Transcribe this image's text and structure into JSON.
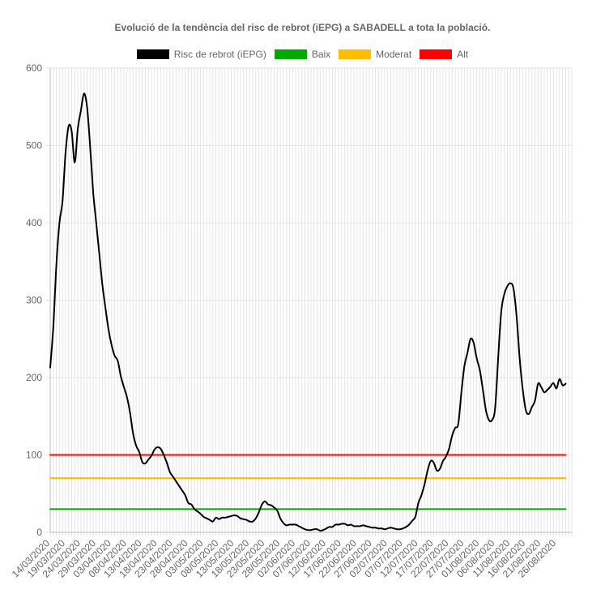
{
  "chart_data": {
    "type": "line",
    "title": "Evolució de la tendència del risc de rebrot (iEPG) a SABADELL a tota la població.",
    "xlabel": "",
    "ylabel": "",
    "ylim": [
      0,
      600
    ],
    "yticks": [
      0,
      100,
      200,
      300,
      400,
      500,
      600
    ],
    "grid": true,
    "legend_position": "top-center",
    "x_start": "14/03/2020",
    "x_end": "31/08/2020",
    "x_tick_labels": [
      "14/03/2020",
      "19/03/2020",
      "24/03/2020",
      "29/03/2020",
      "03/04/2020",
      "08/04/2020",
      "13/04/2020",
      "18/04/2020",
      "23/04/2020",
      "28/04/2020",
      "03/05/2020",
      "08/05/2020",
      "13/05/2020",
      "18/05/2020",
      "23/05/2020",
      "28/05/2020",
      "02/06/2020",
      "07/06/2020",
      "12/06/2020",
      "17/06/2020",
      "22/06/2020",
      "27/06/2020",
      "02/07/2020",
      "07/07/2020",
      "12/07/2020",
      "17/07/2020",
      "22/07/2020",
      "27/07/2020",
      "01/08/2020",
      "06/08/2020",
      "11/08/2020",
      "16/08/2020",
      "21/08/2020",
      "26/08/2020"
    ],
    "series": [
      {
        "name": "Risc de rebrot (iEPG)",
        "color": "#000000",
        "points": [
          [
            "14/03/2020",
            213
          ],
          [
            "15/03/2020",
            265
          ],
          [
            "16/03/2020",
            345
          ],
          [
            "17/03/2020",
            400
          ],
          [
            "18/03/2020",
            428
          ],
          [
            "19/03/2020",
            490
          ],
          [
            "20/03/2020",
            525
          ],
          [
            "21/03/2020",
            518
          ],
          [
            "22/03/2020",
            478
          ],
          [
            "23/03/2020",
            522
          ],
          [
            "24/03/2020",
            545
          ],
          [
            "25/03/2020",
            567
          ],
          [
            "26/03/2020",
            550
          ],
          [
            "27/03/2020",
            500
          ],
          [
            "28/03/2020",
            440
          ],
          [
            "29/03/2020",
            400
          ],
          [
            "30/03/2020",
            360
          ],
          [
            "31/03/2020",
            320
          ],
          [
            "01/04/2020",
            290
          ],
          [
            "02/04/2020",
            262
          ],
          [
            "03/04/2020",
            242
          ],
          [
            "04/04/2020",
            228
          ],
          [
            "05/04/2020",
            222
          ],
          [
            "06/04/2020",
            202
          ],
          [
            "07/04/2020",
            188
          ],
          [
            "08/04/2020",
            175
          ],
          [
            "09/04/2020",
            155
          ],
          [
            "10/04/2020",
            128
          ],
          [
            "11/04/2020",
            112
          ],
          [
            "12/04/2020",
            104
          ],
          [
            "13/04/2020",
            91
          ],
          [
            "14/04/2020",
            89
          ],
          [
            "15/04/2020",
            94
          ],
          [
            "16/04/2020",
            99
          ],
          [
            "17/04/2020",
            107
          ],
          [
            "18/04/2020",
            110
          ],
          [
            "19/04/2020",
            108
          ],
          [
            "20/04/2020",
            100
          ],
          [
            "21/04/2020",
            90
          ],
          [
            "22/04/2020",
            78
          ],
          [
            "23/04/2020",
            72
          ],
          [
            "24/04/2020",
            66
          ],
          [
            "25/04/2020",
            60
          ],
          [
            "26/04/2020",
            54
          ],
          [
            "27/04/2020",
            48
          ],
          [
            "28/04/2020",
            38
          ],
          [
            "29/04/2020",
            36
          ],
          [
            "30/04/2020",
            30
          ],
          [
            "01/05/2020",
            27
          ],
          [
            "02/05/2020",
            24
          ],
          [
            "03/05/2020",
            20
          ],
          [
            "04/05/2020",
            18
          ],
          [
            "05/05/2020",
            16
          ],
          [
            "06/05/2020",
            14
          ],
          [
            "07/05/2020",
            19
          ],
          [
            "08/05/2020",
            17
          ],
          [
            "09/05/2020",
            19
          ],
          [
            "10/05/2020",
            19
          ],
          [
            "11/05/2020",
            20
          ],
          [
            "12/05/2020",
            21
          ],
          [
            "13/05/2020",
            22
          ],
          [
            "14/05/2020",
            21
          ],
          [
            "15/05/2020",
            18
          ],
          [
            "16/05/2020",
            17
          ],
          [
            "17/05/2020",
            16
          ],
          [
            "18/05/2020",
            14
          ],
          [
            "19/05/2020",
            14
          ],
          [
            "20/05/2020",
            18
          ],
          [
            "21/05/2020",
            26
          ],
          [
            "22/05/2020",
            36
          ],
          [
            "23/05/2020",
            40
          ],
          [
            "24/05/2020",
            36
          ],
          [
            "25/05/2020",
            35
          ],
          [
            "26/05/2020",
            32
          ],
          [
            "27/05/2020",
            28
          ],
          [
            "28/05/2020",
            18
          ],
          [
            "29/05/2020",
            12
          ],
          [
            "30/05/2020",
            9
          ],
          [
            "31/05/2020",
            10
          ],
          [
            "01/06/2020",
            10
          ],
          [
            "02/06/2020",
            10
          ],
          [
            "03/06/2020",
            8
          ],
          [
            "04/06/2020",
            6
          ],
          [
            "05/06/2020",
            4
          ],
          [
            "06/06/2020",
            3
          ],
          [
            "07/06/2020",
            3
          ],
          [
            "08/06/2020",
            4
          ],
          [
            "09/06/2020",
            4
          ],
          [
            "10/06/2020",
            2
          ],
          [
            "11/06/2020",
            3
          ],
          [
            "12/06/2020",
            5
          ],
          [
            "13/06/2020",
            7
          ],
          [
            "14/06/2020",
            7
          ],
          [
            "15/06/2020",
            10
          ],
          [
            "16/06/2020",
            10
          ],
          [
            "17/06/2020",
            11
          ],
          [
            "18/06/2020",
            11
          ],
          [
            "19/06/2020",
            9
          ],
          [
            "20/06/2020",
            10
          ],
          [
            "21/06/2020",
            8
          ],
          [
            "22/06/2020",
            8
          ],
          [
            "23/06/2020",
            8
          ],
          [
            "24/06/2020",
            9
          ],
          [
            "25/06/2020",
            8
          ],
          [
            "26/06/2020",
            7
          ],
          [
            "27/06/2020",
            6
          ],
          [
            "28/06/2020",
            6
          ],
          [
            "29/06/2020",
            5
          ],
          [
            "30/06/2020",
            5
          ],
          [
            "01/07/2020",
            4
          ],
          [
            "02/07/2020",
            5
          ],
          [
            "03/07/2020",
            6
          ],
          [
            "04/07/2020",
            5
          ],
          [
            "05/07/2020",
            4
          ],
          [
            "06/07/2020",
            4
          ],
          [
            "07/07/2020",
            5
          ],
          [
            "08/07/2020",
            7
          ],
          [
            "09/07/2020",
            10
          ],
          [
            "10/07/2020",
            15
          ],
          [
            "11/07/2020",
            20
          ],
          [
            "12/07/2020",
            38
          ],
          [
            "13/07/2020",
            48
          ],
          [
            "14/07/2020",
            62
          ],
          [
            "15/07/2020",
            80
          ],
          [
            "16/07/2020",
            92
          ],
          [
            "17/07/2020",
            90
          ],
          [
            "18/07/2020",
            80
          ],
          [
            "19/07/2020",
            82
          ],
          [
            "20/07/2020",
            92
          ],
          [
            "21/07/2020",
            98
          ],
          [
            "22/07/2020",
            108
          ],
          [
            "23/07/2020",
            125
          ],
          [
            "24/07/2020",
            135
          ],
          [
            "25/07/2020",
            140
          ],
          [
            "26/07/2020",
            180
          ],
          [
            "27/07/2020",
            215
          ],
          [
            "28/07/2020",
            232
          ],
          [
            "29/07/2020",
            250
          ],
          [
            "30/07/2020",
            245
          ],
          [
            "31/07/2020",
            225
          ],
          [
            "01/08/2020",
            210
          ],
          [
            "02/08/2020",
            185
          ],
          [
            "03/08/2020",
            158
          ],
          [
            "04/08/2020",
            145
          ],
          [
            "05/08/2020",
            145
          ],
          [
            "06/08/2020",
            160
          ],
          [
            "07/08/2020",
            225
          ],
          [
            "08/08/2020",
            285
          ],
          [
            "09/08/2020",
            308
          ],
          [
            "10/08/2020",
            318
          ],
          [
            "11/08/2020",
            322
          ],
          [
            "12/08/2020",
            315
          ],
          [
            "13/08/2020",
            280
          ],
          [
            "14/08/2020",
            225
          ],
          [
            "15/08/2020",
            185
          ],
          [
            "16/08/2020",
            158
          ],
          [
            "17/08/2020",
            153
          ],
          [
            "18/08/2020",
            162
          ],
          [
            "19/08/2020",
            170
          ],
          [
            "20/08/2020",
            192
          ],
          [
            "21/08/2020",
            188
          ],
          [
            "22/08/2020",
            181
          ],
          [
            "23/08/2020",
            184
          ],
          [
            "24/08/2020",
            188
          ],
          [
            "25/08/2020",
            193
          ],
          [
            "26/08/2020",
            186
          ],
          [
            "27/08/2020",
            198
          ],
          [
            "28/08/2020",
            190
          ],
          [
            "29/08/2020",
            192
          ]
        ]
      },
      {
        "name": "Baix",
        "color": "#00aa00",
        "points": [
          [
            "14/03/2020",
            30
          ],
          [
            "29/08/2020",
            30
          ]
        ]
      },
      {
        "name": "Moderat",
        "color": "#ffbf00",
        "points": [
          [
            "14/03/2020",
            70
          ],
          [
            "29/08/2020",
            70
          ]
        ]
      },
      {
        "name": "Alt",
        "color": "#ff0000",
        "points": [
          [
            "14/03/2020",
            100
          ],
          [
            "29/08/2020",
            100
          ]
        ]
      }
    ]
  }
}
